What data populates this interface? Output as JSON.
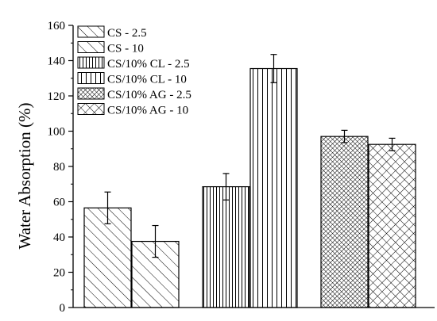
{
  "chart_data": {
    "type": "bar",
    "ylabel": "Water Absorption (%)",
    "xlabel": "",
    "ylim": [
      0,
      160
    ],
    "yticks": [
      0,
      20,
      40,
      60,
      80,
      100,
      120,
      140,
      160
    ],
    "grid": false,
    "legend_position": "top-left",
    "groups": [
      {
        "series": [
          "CS - 2.5",
          "CS - 10"
        ]
      },
      {
        "series": [
          "CS/10% CL - 2.5",
          "CS/10% CL - 10"
        ]
      },
      {
        "series": [
          "CS/10% AG - 2.5",
          "CS/10% AG - 10"
        ]
      }
    ],
    "series": [
      {
        "name": "CS - 2.5",
        "value": 56.5,
        "error": 9,
        "pattern": "diag-sparse"
      },
      {
        "name": "CS - 10",
        "value": 37.5,
        "error": 9,
        "pattern": "diag-dense"
      },
      {
        "name": "CS/10% CL - 2.5",
        "value": 68.5,
        "error": 7.5,
        "pattern": "vert-dense"
      },
      {
        "name": "CS/10% CL - 10",
        "value": 135.5,
        "error": 8,
        "pattern": "vert-sparse"
      },
      {
        "name": "CS/10% AG - 2.5",
        "value": 97,
        "error": 3.5,
        "pattern": "cross-dense"
      },
      {
        "name": "CS/10% AG - 10",
        "value": 92.5,
        "error": 3.5,
        "pattern": "cross-sparse"
      }
    ],
    "colors": {
      "stroke": "#000000",
      "fill": "#ffffff"
    }
  }
}
